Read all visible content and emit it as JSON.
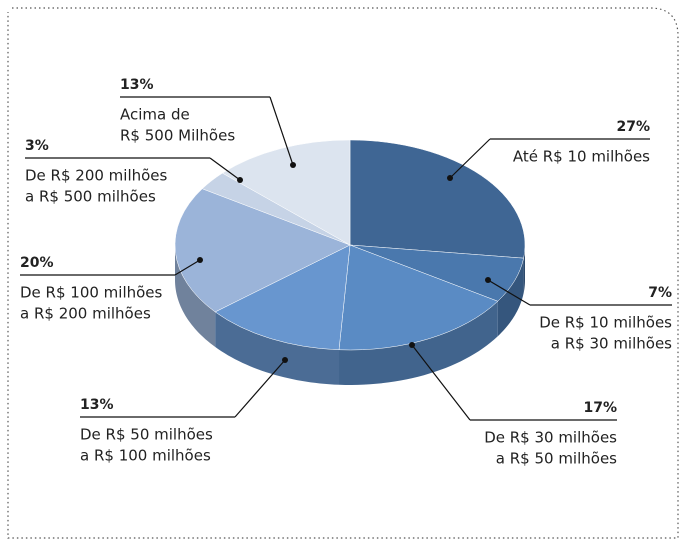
{
  "chart_data": {
    "type": "pie",
    "categories": [
      [
        "Até R$ 10 milhões"
      ],
      [
        "De R$ 10 milhões",
        "a R$ 30 milhões"
      ],
      [
        "De R$ 30 milhões",
        "a R$ 50 milhões"
      ],
      [
        "De R$ 50 milhões",
        "a R$ 100 milhões"
      ],
      [
        "De R$ 100 milhões",
        "a R$ 200 milhões"
      ],
      [
        "De R$ 200 milhões",
        "a R$ 500 milhões"
      ],
      [
        "Acima de",
        "R$ 500 Milhões"
      ]
    ],
    "values": [
      27,
      7,
      17,
      13,
      20,
      3,
      13
    ],
    "value_labels": [
      "27%",
      "7%",
      "17%",
      "13%",
      "20%",
      "3%",
      "13%"
    ],
    "colors": [
      "#3f6694",
      "#4a78ad",
      "#5a8bc4",
      "#6896cf",
      "#9bb4d9",
      "#c6d3e6",
      "#dce4ef"
    ]
  }
}
